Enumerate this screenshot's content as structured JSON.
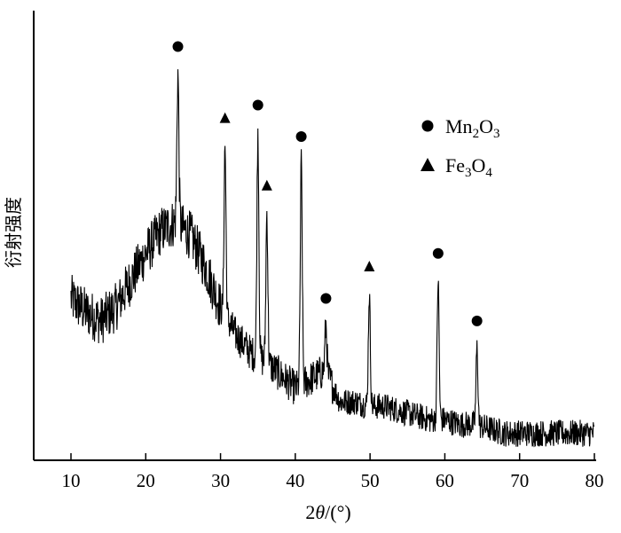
{
  "chart_data": {
    "type": "line",
    "title": "",
    "xlabel_prefix": "2",
    "xlabel_theta": "θ",
    "xlabel_suffix": "/(°)",
    "ylabel": "衍射强度",
    "xlim": [
      5,
      80
    ],
    "ylim": [
      0,
      100
    ],
    "y_ticks_shown": false,
    "x_ticks": [
      10,
      20,
      30,
      40,
      50,
      60,
      70,
      80
    ],
    "x_tick_labels": [
      "10",
      "20",
      "30",
      "40",
      "50",
      "60",
      "70",
      "80"
    ],
    "legend": {
      "placement": "top-right",
      "entries": [
        {
          "marker": "circle",
          "label": "Mn",
          "sub1": "2",
          "mid": "O",
          "sub2": "3"
        },
        {
          "marker": "triangle",
          "label": "Fe",
          "sub1": "3",
          "mid": "O",
          "sub2": "4"
        }
      ]
    },
    "series": [
      {
        "line_color": "#000000",
        "baseline_description": "noisy XRD pattern with broad amorphous hump near 24°",
        "peaks": [
          {
            "x": 24.3,
            "y": 86,
            "phase": "Mn2O3"
          },
          {
            "x": 30.6,
            "y": 70,
            "phase": "Fe3O4"
          },
          {
            "x": 35.0,
            "y": 73,
            "phase": "Mn2O3"
          },
          {
            "x": 36.2,
            "y": 55,
            "phase": "Fe3O4"
          },
          {
            "x": 40.8,
            "y": 66,
            "phase": "Mn2O3"
          },
          {
            "x": 44.1,
            "y": 30,
            "phase": "Mn2O3"
          },
          {
            "x": 49.9,
            "y": 37,
            "phase": "Fe3O4"
          },
          {
            "x": 59.1,
            "y": 40,
            "phase": "Mn2O3"
          },
          {
            "x": 64.3,
            "y": 25,
            "phase": "Mn2O3"
          }
        ],
        "background_points": [
          [
            10,
            36
          ],
          [
            12,
            33
          ],
          [
            14,
            31
          ],
          [
            16,
            34
          ],
          [
            18,
            40
          ],
          [
            20,
            46
          ],
          [
            22,
            51
          ],
          [
            24,
            53
          ],
          [
            26,
            50
          ],
          [
            28,
            43
          ],
          [
            30,
            34
          ],
          [
            32,
            28
          ],
          [
            34,
            24
          ],
          [
            36,
            22
          ],
          [
            38,
            19
          ],
          [
            40,
            16
          ],
          [
            42,
            18
          ],
          [
            44,
            20
          ],
          [
            46,
            13
          ],
          [
            48,
            13
          ],
          [
            50,
            12
          ],
          [
            52,
            12
          ],
          [
            54,
            11
          ],
          [
            56,
            10
          ],
          [
            58,
            9
          ],
          [
            60,
            9
          ],
          [
            62,
            8
          ],
          [
            64,
            8
          ],
          [
            66,
            7
          ],
          [
            68,
            6
          ],
          [
            70,
            6
          ],
          [
            72,
            6
          ],
          [
            74,
            6
          ],
          [
            76,
            6
          ],
          [
            78,
            6
          ],
          [
            80,
            6
          ]
        ]
      }
    ],
    "markers": [
      {
        "shape": "circle",
        "x": 24.3,
        "y": 92
      },
      {
        "shape": "triangle",
        "x": 30.6,
        "y": 76
      },
      {
        "shape": "circle",
        "x": 35.0,
        "y": 79
      },
      {
        "shape": "triangle",
        "x": 36.2,
        "y": 61
      },
      {
        "shape": "circle",
        "x": 40.8,
        "y": 72
      },
      {
        "shape": "circle",
        "x": 44.1,
        "y": 36
      },
      {
        "shape": "triangle",
        "x": 49.9,
        "y": 43
      },
      {
        "shape": "circle",
        "x": 59.1,
        "y": 46
      },
      {
        "shape": "circle",
        "x": 64.3,
        "y": 31
      }
    ]
  }
}
